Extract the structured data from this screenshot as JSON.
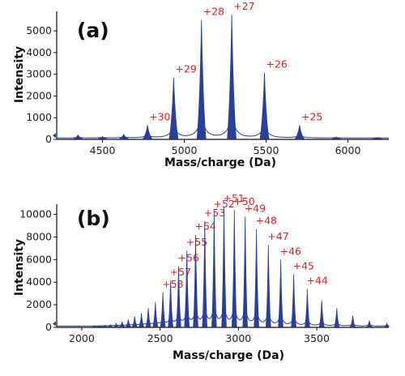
{
  "colors": {
    "trace": "#2a3f9a",
    "peak_label": "#e02020",
    "axis": "#111111"
  },
  "chart_data": [
    {
      "type": "line",
      "panel_label": "(a)",
      "xlabel": "Mass/charge (Da)",
      "ylabel": "Intensity",
      "xlim": [
        4220,
        6250
      ],
      "ylim": [
        0,
        5900
      ],
      "xticks": [
        4500,
        5000,
        5500,
        6000
      ],
      "yticks": [
        0,
        1000,
        2000,
        3000,
        4000,
        5000
      ],
      "baseline_marker": true,
      "series": [
        {
          "peaks": [
            {
              "mz": 4350,
              "intensity": 200,
              "label": ""
            },
            {
              "mz": 4500,
              "intensity": 130,
              "label": ""
            },
            {
              "mz": 4630,
              "intensity": 230,
              "label": ""
            },
            {
              "mz": 4775,
              "intensity": 650,
              "label": "+30"
            },
            {
              "mz": 4935,
              "intensity": 2850,
              "label": "+29"
            },
            {
              "mz": 5105,
              "intensity": 5500,
              "label": "+28"
            },
            {
              "mz": 5290,
              "intensity": 5750,
              "label": "+27"
            },
            {
              "mz": 5490,
              "intensity": 3080,
              "label": "+26"
            },
            {
              "mz": 5705,
              "intensity": 650,
              "label": "+25"
            },
            {
              "mz": 5930,
              "intensity": 110,
              "label": ""
            },
            {
              "mz": 6180,
              "intensity": 80,
              "label": ""
            }
          ]
        }
      ]
    },
    {
      "type": "line",
      "panel_label": "(b)",
      "xlabel": "Mass/charge (Da)",
      "ylabel": "Intensity",
      "xlim": [
        1840,
        3960
      ],
      "ylim": [
        0,
        10900
      ],
      "xticks": [
        2000,
        2500,
        3000,
        3500
      ],
      "yticks": [
        0,
        2000,
        4000,
        6000,
        8000,
        10000
      ],
      "baseline_marker": true,
      "series": [
        {
          "peaks": [
            {
              "mz": 2082,
              "intensity": 70,
              "label": ""
            },
            {
              "mz": 2114,
              "intensity": 100,
              "label": ""
            },
            {
              "mz": 2148,
              "intensity": 150,
              "label": ""
            },
            {
              "mz": 2183,
              "intensity": 230,
              "label": ""
            },
            {
              "mz": 2220,
              "intensity": 350,
              "label": ""
            },
            {
              "mz": 2258,
              "intensity": 500,
              "label": ""
            },
            {
              "mz": 2297,
              "intensity": 700,
              "label": ""
            },
            {
              "mz": 2338,
              "intensity": 950,
              "label": ""
            },
            {
              "mz": 2381,
              "intensity": 1250,
              "label": ""
            },
            {
              "mz": 2425,
              "intensity": 1700,
              "label": ""
            },
            {
              "mz": 2470,
              "intensity": 2250,
              "label": ""
            },
            {
              "mz": 2518,
              "intensity": 3100,
              "label": "+58"
            },
            {
              "mz": 2567,
              "intensity": 4150,
              "label": "+57"
            },
            {
              "mz": 2618,
              "intensity": 5400,
              "label": "+56"
            },
            {
              "mz": 2671,
              "intensity": 6800,
              "label": "+55"
            },
            {
              "mz": 2727,
              "intensity": 8200,
              "label": "+54"
            },
            {
              "mz": 2785,
              "intensity": 9400,
              "label": "+53"
            },
            {
              "mz": 2845,
              "intensity": 10200,
              "label": "+52"
            },
            {
              "mz": 2908,
              "intensity": 10700,
              "label": "+51"
            },
            {
              "mz": 2974,
              "intensity": 10400,
              "label": "+50"
            },
            {
              "mz": 3043,
              "intensity": 9800,
              "label": "+49"
            },
            {
              "mz": 3115,
              "intensity": 8700,
              "label": "+48"
            },
            {
              "mz": 3191,
              "intensity": 7300,
              "label": "+47"
            },
            {
              "mz": 3270,
              "intensity": 6000,
              "label": "+46"
            },
            {
              "mz": 3353,
              "intensity": 4700,
              "label": "+45"
            },
            {
              "mz": 3440,
              "intensity": 3400,
              "label": "+44"
            },
            {
              "mz": 3532,
              "intensity": 2400,
              "label": ""
            },
            {
              "mz": 3628,
              "intensity": 1700,
              "label": ""
            },
            {
              "mz": 3730,
              "intensity": 1050,
              "label": ""
            },
            {
              "mz": 3836,
              "intensity": 600,
              "label": ""
            },
            {
              "mz": 3948,
              "intensity": 350,
              "label": ""
            }
          ]
        }
      ]
    }
  ]
}
